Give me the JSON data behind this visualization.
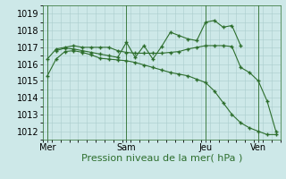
{
  "background_color": "#cde8e8",
  "grid_color": "#aacccc",
  "line_color": "#2d6e2d",
  "ylim": [
    1011.5,
    1019.5
  ],
  "yticks": [
    1012,
    1013,
    1014,
    1015,
    1016,
    1017,
    1018,
    1019
  ],
  "xlabel": "Pression niveau de la mer( hPa )",
  "xlabel_fontsize": 8,
  "tick_fontsize": 7,
  "xtick_labels": [
    "Mer",
    "Sam",
    "Jeu",
    "Ven"
  ],
  "xtick_positions": [
    0,
    9,
    18,
    24
  ],
  "vlines": [
    0,
    9,
    18,
    24
  ],
  "line1_x": [
    0,
    1,
    2,
    3,
    4,
    5,
    6,
    7,
    8,
    9,
    10,
    11,
    12,
    13,
    14,
    15,
    16,
    17,
    18,
    19,
    20,
    21,
    22,
    23,
    24,
    25,
    26
  ],
  "line1_y": [
    1015.3,
    1016.3,
    1016.75,
    1016.8,
    1016.7,
    1016.55,
    1016.35,
    1016.3,
    1016.25,
    1016.2,
    1016.1,
    1015.95,
    1015.8,
    1015.65,
    1015.5,
    1015.4,
    1015.3,
    1015.1,
    1014.9,
    1014.4,
    1013.7,
    1013.0,
    1012.5,
    1012.2,
    1012.0,
    1011.8,
    1011.8
  ],
  "line2_x": [
    1,
    2,
    3,
    4,
    5,
    6,
    7,
    8,
    9,
    10,
    11,
    12,
    13,
    14,
    15,
    16,
    17,
    18,
    19,
    20,
    21,
    22
  ],
  "line2_y": [
    1016.8,
    1016.95,
    1016.9,
    1016.8,
    1016.7,
    1016.6,
    1016.5,
    1016.4,
    1017.3,
    1016.4,
    1017.1,
    1016.3,
    1017.05,
    1017.9,
    1017.7,
    1017.5,
    1017.4,
    1018.5,
    1018.6,
    1018.2,
    1018.3,
    1017.1
  ],
  "line3_x": [
    0,
    1,
    2,
    3,
    4,
    5,
    6,
    7,
    8,
    9,
    10,
    11,
    12,
    13,
    14,
    15,
    16,
    17,
    18,
    19,
    20,
    21,
    22,
    23,
    24,
    25,
    26
  ],
  "line3_y": [
    1016.3,
    1016.9,
    1017.0,
    1017.1,
    1017.0,
    1017.0,
    1017.0,
    1017.0,
    1016.8,
    1016.7,
    1016.65,
    1016.65,
    1016.65,
    1016.65,
    1016.7,
    1016.75,
    1016.9,
    1017.0,
    1017.1,
    1017.1,
    1017.1,
    1017.05,
    1015.8,
    1015.5,
    1015.0,
    1013.8,
    1012.0
  ]
}
